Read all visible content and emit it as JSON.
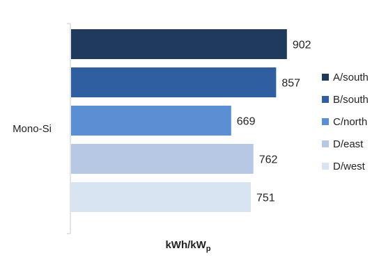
{
  "chart_data": {
    "type": "bar",
    "orientation": "horizontal",
    "categories": [
      "Mono-Si"
    ],
    "series": [
      {
        "name": "A/south",
        "values": [
          902
        ],
        "color": "#203a5e"
      },
      {
        "name": "B/south",
        "values": [
          857
        ],
        "color": "#2f5fa0"
      },
      {
        "name": "C/north",
        "values": [
          669
        ],
        "color": "#5b8fd3"
      },
      {
        "name": "D/east",
        "values": [
          762
        ],
        "color": "#b6c8e4"
      },
      {
        "name": "D/west",
        "values": [
          751
        ],
        "color": "#d9e4f2"
      }
    ],
    "xlabel_main": "kWh/kW",
    "xlabel_sub": "p",
    "ylabel": "",
    "xlim": [
      0,
      920
    ],
    "legend_position": "right",
    "grid": false,
    "data_labels": true
  }
}
